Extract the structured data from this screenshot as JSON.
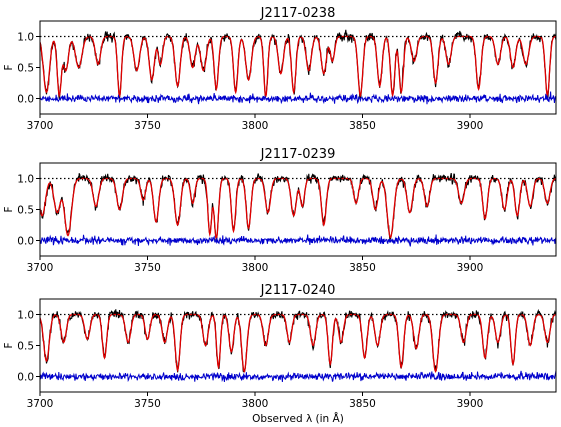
{
  "figure": {
    "xlabel": "Observed λ (in Å)"
  },
  "chart_data": [
    {
      "type": "line",
      "title": "J2117-0238",
      "ylabel": "F",
      "xlim": [
        3700,
        3940
      ],
      "ylim": [
        -0.25,
        1.25
      ],
      "xticks": [
        3700,
        3750,
        3800,
        3850,
        3900
      ],
      "xtick_labels": [
        "3700",
        "3750",
        "3800",
        "3850",
        "3900"
      ],
      "yticks": [
        0.0,
        0.5,
        1.0
      ],
      "ytick_labels": [
        "0.0",
        "0.5",
        "1.0"
      ],
      "continuum_level": 1.0,
      "seed": 11,
      "absorption_lines": [
        {
          "x": 3703,
          "depth": 0.9,
          "width": 1.4
        },
        {
          "x": 3709,
          "depth": 0.95,
          "width": 1.0
        },
        {
          "x": 3712,
          "depth": 0.55,
          "width": 1.2
        },
        {
          "x": 3718,
          "depth": 0.5,
          "width": 1.5
        },
        {
          "x": 3727,
          "depth": 0.45,
          "width": 1.2
        },
        {
          "x": 3737,
          "depth": 0.97,
          "width": 0.9
        },
        {
          "x": 3745,
          "depth": 0.55,
          "width": 1.3
        },
        {
          "x": 3752,
          "depth": 0.7,
          "width": 1.2
        },
        {
          "x": 3756,
          "depth": 0.45,
          "width": 1.0
        },
        {
          "x": 3764,
          "depth": 0.8,
          "width": 1.2
        },
        {
          "x": 3771,
          "depth": 0.5,
          "width": 1.2
        },
        {
          "x": 3776,
          "depth": 0.55,
          "width": 1.3
        },
        {
          "x": 3782,
          "depth": 0.85,
          "width": 1.0
        },
        {
          "x": 3791,
          "depth": 0.9,
          "width": 1.0
        },
        {
          "x": 3797,
          "depth": 0.7,
          "width": 1.3
        },
        {
          "x": 3805,
          "depth": 0.97,
          "width": 0.9
        },
        {
          "x": 3812,
          "depth": 0.6,
          "width": 1.2
        },
        {
          "x": 3818,
          "depth": 0.9,
          "width": 1.0
        },
        {
          "x": 3825,
          "depth": 0.55,
          "width": 1.2
        },
        {
          "x": 3832,
          "depth": 0.6,
          "width": 1.2
        },
        {
          "x": 3836,
          "depth": 0.4,
          "width": 1.0
        },
        {
          "x": 3849,
          "depth": 0.95,
          "width": 1.1
        },
        {
          "x": 3858,
          "depth": 0.8,
          "width": 1.1
        },
        {
          "x": 3864,
          "depth": 0.95,
          "width": 1.0
        },
        {
          "x": 3868,
          "depth": 0.9,
          "width": 1.0
        },
        {
          "x": 3874,
          "depth": 0.4,
          "width": 1.2
        },
        {
          "x": 3884,
          "depth": 0.75,
          "width": 1.1
        },
        {
          "x": 3890,
          "depth": 0.45,
          "width": 1.2
        },
        {
          "x": 3904,
          "depth": 0.85,
          "width": 1.1
        },
        {
          "x": 3913,
          "depth": 0.45,
          "width": 1.2
        },
        {
          "x": 3920,
          "depth": 0.5,
          "width": 1.2
        },
        {
          "x": 3926,
          "depth": 0.45,
          "width": 1.3
        },
        {
          "x": 3936,
          "depth": 0.95,
          "width": 1.0
        }
      ]
    },
    {
      "type": "line",
      "title": "J2117-0239",
      "ylabel": "F",
      "xlim": [
        3700,
        3940
      ],
      "ylim": [
        -0.25,
        1.25
      ],
      "xticks": [
        3700,
        3750,
        3800,
        3850,
        3900
      ],
      "xtick_labels": [
        "3700",
        "3750",
        "3800",
        "3850",
        "3900"
      ],
      "yticks": [
        0.0,
        0.5,
        1.0
      ],
      "ytick_labels": [
        "0.0",
        "0.5",
        "1.0"
      ],
      "continuum_level": 1.0,
      "seed": 23,
      "absorption_lines": [
        {
          "x": 3701,
          "depth": 0.6,
          "width": 1.5
        },
        {
          "x": 3708,
          "depth": 0.55,
          "width": 1.5
        },
        {
          "x": 3713,
          "depth": 0.92,
          "width": 1.6
        },
        {
          "x": 3726,
          "depth": 0.45,
          "width": 1.3
        },
        {
          "x": 3737,
          "depth": 0.5,
          "width": 1.3
        },
        {
          "x": 3748,
          "depth": 0.35,
          "width": 1.1
        },
        {
          "x": 3754,
          "depth": 0.7,
          "width": 1.2
        },
        {
          "x": 3764,
          "depth": 0.75,
          "width": 1.3
        },
        {
          "x": 3771,
          "depth": 0.4,
          "width": 1.0
        },
        {
          "x": 3779,
          "depth": 0.9,
          "width": 0.9
        },
        {
          "x": 3782,
          "depth": 0.97,
          "width": 1.0
        },
        {
          "x": 3790,
          "depth": 0.85,
          "width": 1.0
        },
        {
          "x": 3797,
          "depth": 0.8,
          "width": 1.1
        },
        {
          "x": 3806,
          "depth": 0.55,
          "width": 1.2
        },
        {
          "x": 3818,
          "depth": 0.6,
          "width": 1.2
        },
        {
          "x": 3822,
          "depth": 0.45,
          "width": 1.0
        },
        {
          "x": 3832,
          "depth": 0.75,
          "width": 1.1
        },
        {
          "x": 3847,
          "depth": 0.4,
          "width": 1.1
        },
        {
          "x": 3856,
          "depth": 0.5,
          "width": 1.2
        },
        {
          "x": 3863,
          "depth": 0.95,
          "width": 1.5
        },
        {
          "x": 3872,
          "depth": 0.55,
          "width": 1.3
        },
        {
          "x": 3880,
          "depth": 0.45,
          "width": 1.2
        },
        {
          "x": 3896,
          "depth": 0.4,
          "width": 1.3
        },
        {
          "x": 3907,
          "depth": 0.65,
          "width": 1.1
        },
        {
          "x": 3916,
          "depth": 0.5,
          "width": 1.2
        },
        {
          "x": 3922,
          "depth": 0.6,
          "width": 1.1
        },
        {
          "x": 3928,
          "depth": 0.45,
          "width": 1.2
        },
        {
          "x": 3936,
          "depth": 0.4,
          "width": 1.2
        }
      ]
    },
    {
      "type": "line",
      "title": "J2117-0240",
      "ylabel": "F",
      "xlim": [
        3700,
        3940
      ],
      "ylim": [
        -0.25,
        1.25
      ],
      "xticks": [
        3700,
        3750,
        3800,
        3850,
        3900
      ],
      "xtick_labels": [
        "3700",
        "3750",
        "3800",
        "3850",
        "3900"
      ],
      "yticks": [
        0.0,
        0.5,
        1.0
      ],
      "ytick_labels": [
        "0.0",
        "0.5",
        "1.0"
      ],
      "continuum_level": 1.0,
      "seed": 37,
      "absorption_lines": [
        {
          "x": 3703,
          "depth": 0.75,
          "width": 1.3
        },
        {
          "x": 3711,
          "depth": 0.45,
          "width": 1.2
        },
        {
          "x": 3722,
          "depth": 0.4,
          "width": 1.2
        },
        {
          "x": 3730,
          "depth": 0.7,
          "width": 1.0
        },
        {
          "x": 3741,
          "depth": 0.45,
          "width": 1.2
        },
        {
          "x": 3750,
          "depth": 0.4,
          "width": 1.1
        },
        {
          "x": 3758,
          "depth": 0.45,
          "width": 1.2
        },
        {
          "x": 3764,
          "depth": 0.9,
          "width": 1.1
        },
        {
          "x": 3777,
          "depth": 0.5,
          "width": 1.2
        },
        {
          "x": 3783,
          "depth": 0.85,
          "width": 0.9
        },
        {
          "x": 3789,
          "depth": 0.6,
          "width": 1.1
        },
        {
          "x": 3795,
          "depth": 0.92,
          "width": 1.2
        },
        {
          "x": 3805,
          "depth": 0.5,
          "width": 1.2
        },
        {
          "x": 3816,
          "depth": 0.45,
          "width": 1.1
        },
        {
          "x": 3827,
          "depth": 0.5,
          "width": 1.2
        },
        {
          "x": 3835,
          "depth": 0.8,
          "width": 1.0
        },
        {
          "x": 3840,
          "depth": 0.45,
          "width": 1.1
        },
        {
          "x": 3851,
          "depth": 0.7,
          "width": 1.1
        },
        {
          "x": 3857,
          "depth": 0.5,
          "width": 1.2
        },
        {
          "x": 3868,
          "depth": 0.85,
          "width": 1.1
        },
        {
          "x": 3875,
          "depth": 0.55,
          "width": 1.2
        },
        {
          "x": 3884,
          "depth": 0.92,
          "width": 1.3
        },
        {
          "x": 3897,
          "depth": 0.45,
          "width": 1.2
        },
        {
          "x": 3907,
          "depth": 0.7,
          "width": 1.1
        },
        {
          "x": 3913,
          "depth": 0.45,
          "width": 1.2
        },
        {
          "x": 3920,
          "depth": 0.8,
          "width": 1.0
        },
        {
          "x": 3928,
          "depth": 0.5,
          "width": 1.2
        },
        {
          "x": 3936,
          "depth": 0.45,
          "width": 1.2
        }
      ]
    }
  ],
  "colors": {
    "flux": "#000000",
    "model": "#e00000",
    "error": "#0000cc",
    "continuum": "#000000"
  }
}
